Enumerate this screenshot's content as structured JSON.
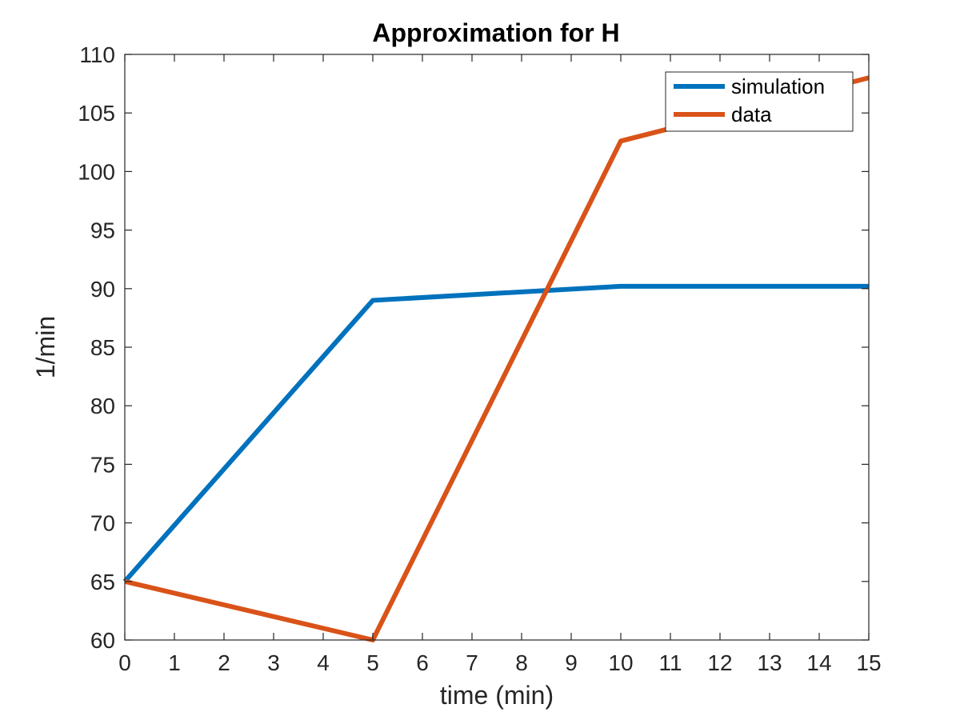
{
  "chart_data": {
    "type": "line",
    "title": "Approximation for H",
    "xlabel": "time (min)",
    "ylabel": "1/min",
    "xlim": [
      0,
      15
    ],
    "ylim": [
      60,
      110
    ],
    "xticks": [
      0,
      1,
      2,
      3,
      4,
      5,
      6,
      7,
      8,
      9,
      10,
      11,
      12,
      13,
      14,
      15
    ],
    "yticks": [
      60,
      65,
      70,
      75,
      80,
      85,
      90,
      95,
      100,
      105,
      110
    ],
    "grid": false,
    "legend_position": "top-right",
    "series": [
      {
        "name": "simulation",
        "color": "#0072BD",
        "x": [
          0,
          5,
          10,
          15
        ],
        "y": [
          65,
          89,
          90.2,
          90.2
        ]
      },
      {
        "name": "data",
        "color": "#D95319",
        "x": [
          0,
          5,
          10,
          15
        ],
        "y": [
          65,
          60,
          102.6,
          108
        ]
      }
    ]
  }
}
